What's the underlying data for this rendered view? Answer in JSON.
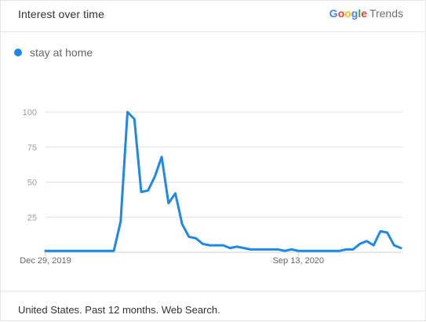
{
  "header": {
    "title": "Interest over time",
    "brand": {
      "letters": [
        {
          "char": "G",
          "color": "#4285F4"
        },
        {
          "char": "o",
          "color": "#EA4335"
        },
        {
          "char": "o",
          "color": "#FBBC05"
        },
        {
          "char": "g",
          "color": "#4285F4"
        },
        {
          "char": "l",
          "color": "#34A853"
        },
        {
          "char": "e",
          "color": "#EA4335"
        }
      ],
      "suffix": "Trends"
    }
  },
  "footer": {
    "text": "United States. Past 12 months. Web Search."
  },
  "colors": {
    "series": "#1e88e5",
    "grid": "#e0e0e0",
    "axis_text": "#9e9e9e",
    "xaxis_text": "#666666"
  },
  "chart_data": {
    "type": "line",
    "title": "",
    "xlabel": "",
    "ylabel": "",
    "ylim": [
      0,
      100
    ],
    "yticks": [
      25,
      50,
      75,
      100
    ],
    "xtick_labels": [
      {
        "index": 0,
        "label": "Dec 29, 2019"
      },
      {
        "index": 37,
        "label": "Sep 13, 2020"
      }
    ],
    "legend_position": "top-left",
    "series": [
      {
        "name": "stay at home",
        "color": "#1e88e5",
        "values": [
          1,
          1,
          1,
          1,
          1,
          1,
          1,
          1,
          1,
          1,
          1,
          22,
          100,
          95,
          43,
          44,
          54,
          68,
          35,
          42,
          20,
          11,
          10,
          6,
          5,
          5,
          5,
          3,
          4,
          3,
          2,
          2,
          2,
          2,
          2,
          1,
          2,
          1,
          1,
          1,
          1,
          1,
          1,
          1,
          2,
          2,
          6,
          8,
          5,
          15,
          14,
          5,
          3
        ]
      }
    ]
  }
}
